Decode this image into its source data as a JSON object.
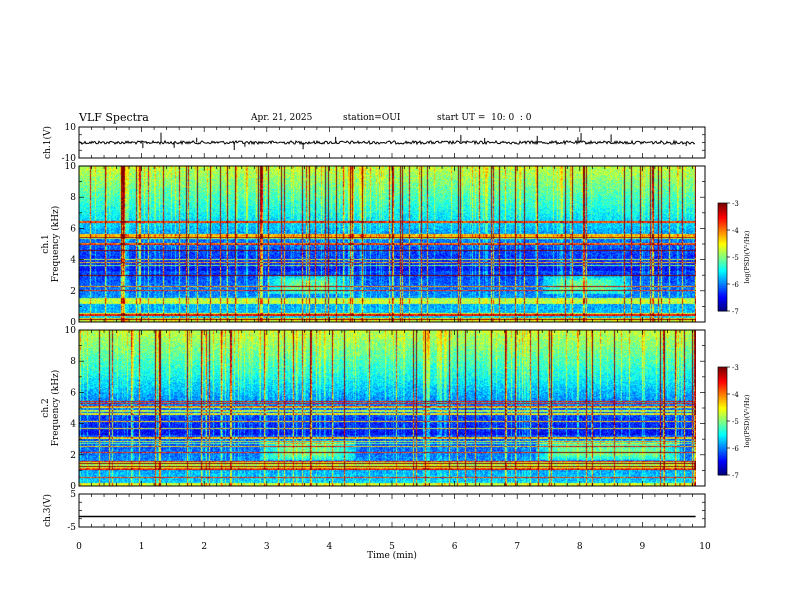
{
  "header": {
    "title": "VLF Spectra",
    "date": "Apr. 21, 2025",
    "station": "station=OUI",
    "start": "start UT =  10: 0  : 0"
  },
  "chart_data": [
    {
      "type": "line",
      "ylabel": "ch.1(V)",
      "ylim": [
        -10,
        10
      ],
      "ytick_labels": [
        "-10",
        "10"
      ],
      "x_range_min": [
        0,
        10
      ],
      "trace_level_V": 0,
      "trace_noise_V": 1.2
    },
    {
      "type": "heatmap",
      "ylabel_lines": [
        "ch.1",
        "Frequency (kHz)"
      ],
      "ylim": [
        0,
        10
      ],
      "ytick_labels": [
        "0",
        "2",
        "4",
        "6",
        "8",
        "10"
      ],
      "x_data_end_min": 9.85,
      "colorbar": {
        "label": "log(PSD)(V²/Hz)",
        "min": -7,
        "max": -3,
        "tick_labels": [
          "-7",
          "-6",
          "-5",
          "-4",
          "-3"
        ]
      },
      "emission_bands_kHz": [
        {
          "from_min": 3.0,
          "to_min": 4.3,
          "low_kHz": 1.8,
          "high_kHz": 3.0
        },
        {
          "from_min": 7.4,
          "to_min": 8.8,
          "low_kHz": 1.8,
          "high_kHz": 3.0
        }
      ]
    },
    {
      "type": "heatmap",
      "ylabel_lines": [
        "ch.2",
        "Frequency (kHz)"
      ],
      "ylim": [
        0,
        10
      ],
      "ytick_labels": [
        "0",
        "2",
        "4",
        "6",
        "8",
        "10"
      ],
      "x_data_end_min": 9.85,
      "colorbar": {
        "label": "log(PSD)(V²/Hz)",
        "min": -7,
        "max": -3,
        "tick_labels": [
          "-7",
          "-6",
          "-5",
          "-4",
          "-3"
        ]
      },
      "emission_bands_kHz": [
        {
          "from_min": 2.9,
          "to_min": 4.4,
          "low_kHz": 1.7,
          "high_kHz": 3.0
        },
        {
          "from_min": 7.3,
          "to_min": 9.6,
          "low_kHz": 1.7,
          "high_kHz": 3.0
        }
      ]
    },
    {
      "type": "line",
      "ylabel": "ch.3(V)",
      "ylim": [
        -5,
        5
      ],
      "ytick_labels": [
        "-5",
        "5"
      ],
      "trace_level_V": -1.8
    }
  ],
  "x_axis": {
    "label": "Time (min)",
    "range": [
      0,
      10
    ],
    "tick_labels": [
      "0",
      "1",
      "2",
      "3",
      "4",
      "5",
      "6",
      "7",
      "8",
      "9",
      "10"
    ]
  }
}
